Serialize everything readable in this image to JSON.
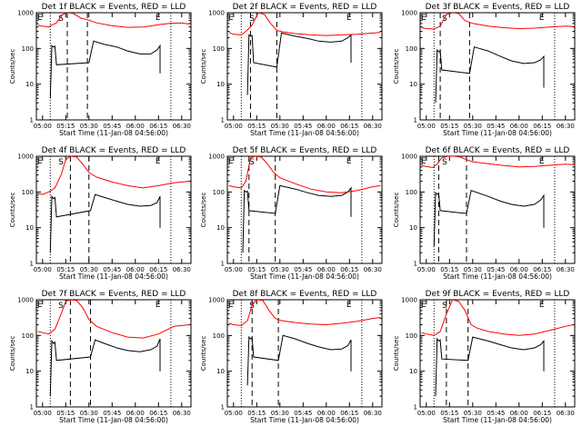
{
  "figure": {
    "title_template": "Det {det} BLACK = Events, RED = LLD",
    "xlabel": "Start Time (11-Jan-08 04:56:00)",
    "ylabel": "Counts/sec",
    "x_ticks": [
      "05:00",
      "05:15",
      "05:30",
      "05:45",
      "06:00",
      "06:15",
      "06:30"
    ],
    "y_ticks": [
      "1",
      "10",
      "100",
      "1000"
    ],
    "colors": {
      "events": "#000000",
      "lld": "#ff0000"
    },
    "markers": {
      "start": "E",
      "middle": "S",
      "end": "E"
    },
    "marker_lines": {
      "dotted": [
        "05:05",
        "06:23"
      ],
      "dashed": [
        "05:28",
        "05:10"
      ]
    }
  },
  "chart_data": [
    {
      "type": "line",
      "det": "1f",
      "yscale": "log",
      "ylim": [
        1,
        1000
      ],
      "xlim": [
        "04:56",
        "06:36"
      ],
      "dash1": "05:16",
      "dash2": "05:29",
      "series": [
        {
          "name": "Events",
          "x": [
            "05:05",
            "05:06",
            "05:07",
            "05:08",
            "05:09",
            "05:30",
            "05:33",
            "05:40",
            "05:48",
            "05:55",
            "06:03",
            "06:10",
            "06:14",
            "06:16",
            "06:16"
          ],
          "y": [
            4,
            120,
            110,
            115,
            35,
            40,
            160,
            130,
            110,
            85,
            70,
            70,
            90,
            120,
            20
          ]
        },
        {
          "name": "LLD",
          "x": [
            "04:57",
            "05:00",
            "05:04",
            "05:06",
            "05:09",
            "05:13",
            "05:16",
            "05:20",
            "05:25",
            "05:30",
            "05:35",
            "05:45",
            "05:55",
            "06:05",
            "06:15",
            "06:22",
            "06:30",
            "06:35"
          ],
          "y": [
            450,
            420,
            400,
            450,
            520,
            900,
            1000,
            950,
            700,
            620,
            520,
            430,
            390,
            400,
            460,
            500,
            520,
            480
          ]
        }
      ]
    },
    {
      "type": "line",
      "det": "2f",
      "yscale": "log",
      "ylim": [
        1,
        1000
      ],
      "xlim": [
        "04:56",
        "06:36"
      ],
      "dash1": "05:11",
      "dash2": "05:28",
      "series": [
        {
          "name": "Events",
          "x": [
            "05:09",
            "05:10",
            "05:11",
            "05:12",
            "05:13",
            "05:28",
            "05:31",
            "05:40",
            "05:48",
            "05:55",
            "06:03",
            "06:10",
            "06:14",
            "06:16",
            "06:16"
          ],
          "y": [
            5,
            240,
            220,
            230,
            40,
            30,
            270,
            220,
            190,
            160,
            150,
            160,
            200,
            240,
            40
          ]
        },
        {
          "name": "LLD",
          "x": [
            "04:57",
            "05:00",
            "05:05",
            "05:08",
            "05:12",
            "05:16",
            "05:20",
            "05:24",
            "05:28",
            "05:32",
            "05:40",
            "05:50",
            "06:00",
            "06:10",
            "06:20",
            "06:30",
            "06:35"
          ],
          "y": [
            280,
            250,
            240,
            300,
            450,
            1000,
            900,
            500,
            320,
            290,
            260,
            240,
            230,
            240,
            250,
            270,
            280
          ]
        }
      ]
    },
    {
      "type": "line",
      "det": "3f",
      "yscale": "log",
      "ylim": [
        1,
        1000
      ],
      "xlim": [
        "04:56",
        "06:36"
      ],
      "dash1": "05:09",
      "dash2": "05:28",
      "series": [
        {
          "name": "Events",
          "x": [
            "05:06",
            "05:07",
            "05:08",
            "05:09",
            "05:10",
            "05:28",
            "05:31",
            "05:40",
            "05:48",
            "05:55",
            "06:03",
            "06:10",
            "06:14",
            "06:16",
            "06:16"
          ],
          "y": [
            3,
            90,
            80,
            85,
            25,
            20,
            110,
            85,
            60,
            45,
            38,
            40,
            48,
            60,
            8
          ]
        },
        {
          "name": "LLD",
          "x": [
            "04:57",
            "05:00",
            "05:05",
            "05:09",
            "05:13",
            "05:17",
            "05:21",
            "05:25",
            "05:30",
            "05:40",
            "05:50",
            "06:00",
            "06:10",
            "06:20",
            "06:30",
            "06:35"
          ],
          "y": [
            380,
            360,
            350,
            420,
            900,
            1000,
            950,
            600,
            500,
            420,
            380,
            360,
            370,
            400,
            420,
            410
          ]
        }
      ]
    },
    {
      "type": "line",
      "det": "4f",
      "yscale": "log",
      "ylim": [
        1,
        1000
      ],
      "xlim": [
        "04:56",
        "06:36"
      ],
      "dash1": "05:18",
      "dash2": "05:30",
      "series": [
        {
          "name": "Events",
          "x": [
            "05:05",
            "05:06",
            "05:07",
            "05:08",
            "05:09",
            "05:31",
            "05:34",
            "05:40",
            "05:48",
            "05:55",
            "06:03",
            "06:10",
            "06:14",
            "06:16",
            "06:16"
          ],
          "y": [
            2,
            75,
            65,
            70,
            20,
            30,
            85,
            70,
            55,
            45,
            40,
            42,
            50,
            75,
            10
          ]
        },
        {
          "name": "LLD",
          "x": [
            "04:57",
            "05:00",
            "05:04",
            "05:08",
            "05:12",
            "05:15",
            "05:18",
            "05:22",
            "05:26",
            "05:30",
            "05:35",
            "05:45",
            "05:55",
            "06:05",
            "06:15",
            "06:25",
            "06:35"
          ],
          "y": [
            90,
            85,
            100,
            130,
            300,
            800,
            1000,
            950,
            600,
            350,
            260,
            190,
            150,
            130,
            150,
            180,
            200
          ]
        }
      ]
    },
    {
      "type": "line",
      "det": "5f",
      "yscale": "log",
      "ylim": [
        1,
        1000
      ],
      "xlim": [
        "04:56",
        "06:36"
      ],
      "dash1": "05:10",
      "dash2": "05:27",
      "series": [
        {
          "name": "Events",
          "x": [
            "05:06",
            "05:07",
            "05:08",
            "05:09",
            "05:10",
            "05:27",
            "05:30",
            "05:40",
            "05:48",
            "05:55",
            "06:03",
            "06:10",
            "06:14",
            "06:16",
            "06:16"
          ],
          "y": [
            2,
            110,
            100,
            105,
            30,
            25,
            150,
            120,
            95,
            80,
            75,
            80,
            100,
            130,
            20
          ]
        },
        {
          "name": "LLD",
          "x": [
            "04:57",
            "05:00",
            "05:05",
            "05:08",
            "05:11",
            "05:14",
            "05:18",
            "05:22",
            "05:26",
            "05:30",
            "05:40",
            "05:50",
            "06:00",
            "06:10",
            "06:20",
            "06:30",
            "06:35"
          ],
          "y": [
            150,
            140,
            130,
            200,
            900,
            1000,
            950,
            600,
            350,
            250,
            170,
            120,
            100,
            95,
            110,
            140,
            150
          ]
        }
      ]
    },
    {
      "type": "line",
      "det": "6f",
      "yscale": "log",
      "ylim": [
        1,
        1000
      ],
      "xlim": [
        "04:56",
        "06:36"
      ],
      "dash1": "05:08",
      "dash2": "05:26",
      "series": [
        {
          "name": "Events",
          "x": [
            "05:05",
            "05:06",
            "05:07",
            "05:08",
            "05:09",
            "05:26",
            "05:29",
            "05:40",
            "05:48",
            "05:55",
            "06:03",
            "06:10",
            "06:14",
            "06:16",
            "06:16"
          ],
          "y": [
            3,
            95,
            85,
            90,
            30,
            25,
            110,
            75,
            55,
            45,
            40,
            45,
            60,
            80,
            10
          ]
        },
        {
          "name": "LLD",
          "x": [
            "04:57",
            "05:00",
            "05:04",
            "05:07",
            "05:10",
            "05:14",
            "05:18",
            "05:22",
            "05:26",
            "05:30",
            "05:40",
            "05:50",
            "06:00",
            "06:10",
            "06:20",
            "06:30",
            "06:35"
          ],
          "y": [
            550,
            520,
            480,
            600,
            900,
            1000,
            1000,
            950,
            800,
            700,
            620,
            550,
            500,
            520,
            560,
            600,
            580
          ]
        }
      ]
    },
    {
      "type": "line",
      "det": "7f",
      "yscale": "log",
      "ylim": [
        1,
        1000
      ],
      "xlim": [
        "04:56",
        "06:36"
      ],
      "dash1": "05:18",
      "dash2": "05:31",
      "series": [
        {
          "name": "Events",
          "x": [
            "05:05",
            "05:06",
            "05:07",
            "05:08",
            "05:09",
            "05:31",
            "05:34",
            "05:40",
            "05:48",
            "05:55",
            "06:03",
            "06:10",
            "06:14",
            "06:16",
            "06:16"
          ],
          "y": [
            2,
            70,
            60,
            65,
            20,
            25,
            75,
            60,
            45,
            38,
            35,
            40,
            50,
            80,
            10
          ]
        },
        {
          "name": "LLD",
          "x": [
            "04:57",
            "05:00",
            "05:04",
            "05:08",
            "05:12",
            "05:15",
            "05:18",
            "05:22",
            "05:26",
            "05:30",
            "05:35",
            "05:45",
            "05:55",
            "06:05",
            "06:15",
            "06:25",
            "06:35"
          ],
          "y": [
            130,
            120,
            110,
            150,
            400,
            900,
            1000,
            950,
            600,
            280,
            180,
            120,
            90,
            85,
            110,
            180,
            200
          ]
        }
      ]
    },
    {
      "type": "line",
      "det": "8f",
      "yscale": "log",
      "ylim": [
        1,
        1000
      ],
      "xlim": [
        "04:56",
        "06:36"
      ],
      "dash1": "05:12",
      "dash2": "05:29",
      "series": [
        {
          "name": "Events",
          "x": [
            "05:09",
            "05:10",
            "05:11",
            "05:12",
            "05:13",
            "05:29",
            "05:32",
            "05:40",
            "05:48",
            "05:55",
            "06:03",
            "06:10",
            "06:14",
            "06:16",
            "06:16"
          ],
          "y": [
            4,
            90,
            80,
            85,
            25,
            20,
            100,
            80,
            60,
            48,
            40,
            42,
            52,
            75,
            10
          ]
        },
        {
          "name": "LLD",
          "x": [
            "04:57",
            "05:00",
            "05:05",
            "05:09",
            "05:12",
            "05:15",
            "05:19",
            "05:23",
            "05:27",
            "05:31",
            "05:40",
            "05:50",
            "06:00",
            "06:10",
            "06:20",
            "06:30",
            "06:35"
          ],
          "y": [
            220,
            200,
            190,
            260,
            700,
            1000,
            950,
            500,
            300,
            260,
            230,
            210,
            200,
            220,
            250,
            300,
            320
          ]
        }
      ]
    },
    {
      "type": "line",
      "det": "9f",
      "yscale": "log",
      "ylim": [
        1,
        1000
      ],
      "xlim": [
        "04:56",
        "06:36"
      ],
      "dash1": "05:13",
      "dash2": "05:27",
      "series": [
        {
          "name": "Events",
          "x": [
            "05:06",
            "05:07",
            "05:08",
            "05:09",
            "05:10",
            "05:27",
            "05:30",
            "05:40",
            "05:48",
            "05:55",
            "06:03",
            "06:10",
            "06:14",
            "06:16",
            "06:16"
          ],
          "y": [
            2,
            80,
            70,
            75,
            22,
            20,
            90,
            70,
            55,
            45,
            40,
            45,
            55,
            70,
            10
          ]
        },
        {
          "name": "LLD",
          "x": [
            "04:57",
            "05:00",
            "05:05",
            "05:09",
            "05:13",
            "05:17",
            "05:21",
            "05:25",
            "05:29",
            "05:33",
            "05:40",
            "05:50",
            "06:00",
            "06:10",
            "06:20",
            "06:30",
            "06:35"
          ],
          "y": [
            120,
            110,
            100,
            130,
            400,
            1000,
            900,
            500,
            200,
            160,
            130,
            110,
            100,
            110,
            140,
            180,
            200
          ]
        }
      ]
    }
  ]
}
